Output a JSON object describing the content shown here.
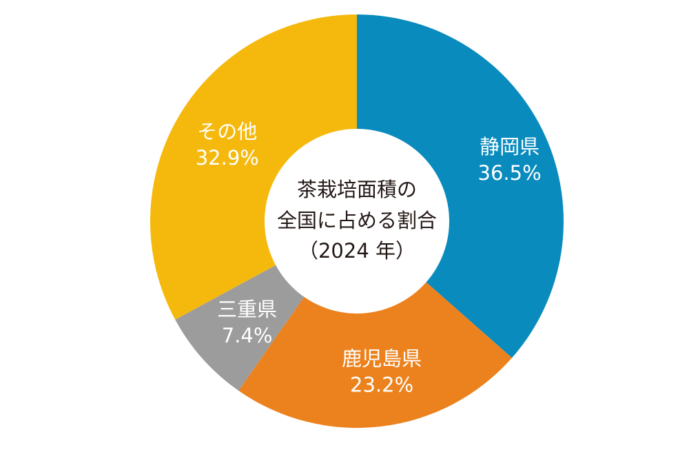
{
  "chart_data": {
    "type": "pie",
    "title_lines": [
      "茶栽培面積の",
      "全国に占める割合",
      "（2024 年）"
    ],
    "slices": [
      {
        "label": "静岡県",
        "value": 36.5,
        "value_label": "36.5%",
        "color": "#0a8bbd"
      },
      {
        "label": "鹿児島県",
        "value": 23.2,
        "value_label": "23.2%",
        "color": "#ec821e"
      },
      {
        "label": "三重県",
        "value": 7.4,
        "value_label": "7.4%",
        "color": "#9c9c9c"
      },
      {
        "label": "その他",
        "value": 32.9,
        "value_label": "32.9%",
        "color": "#f5b90e"
      }
    ]
  }
}
